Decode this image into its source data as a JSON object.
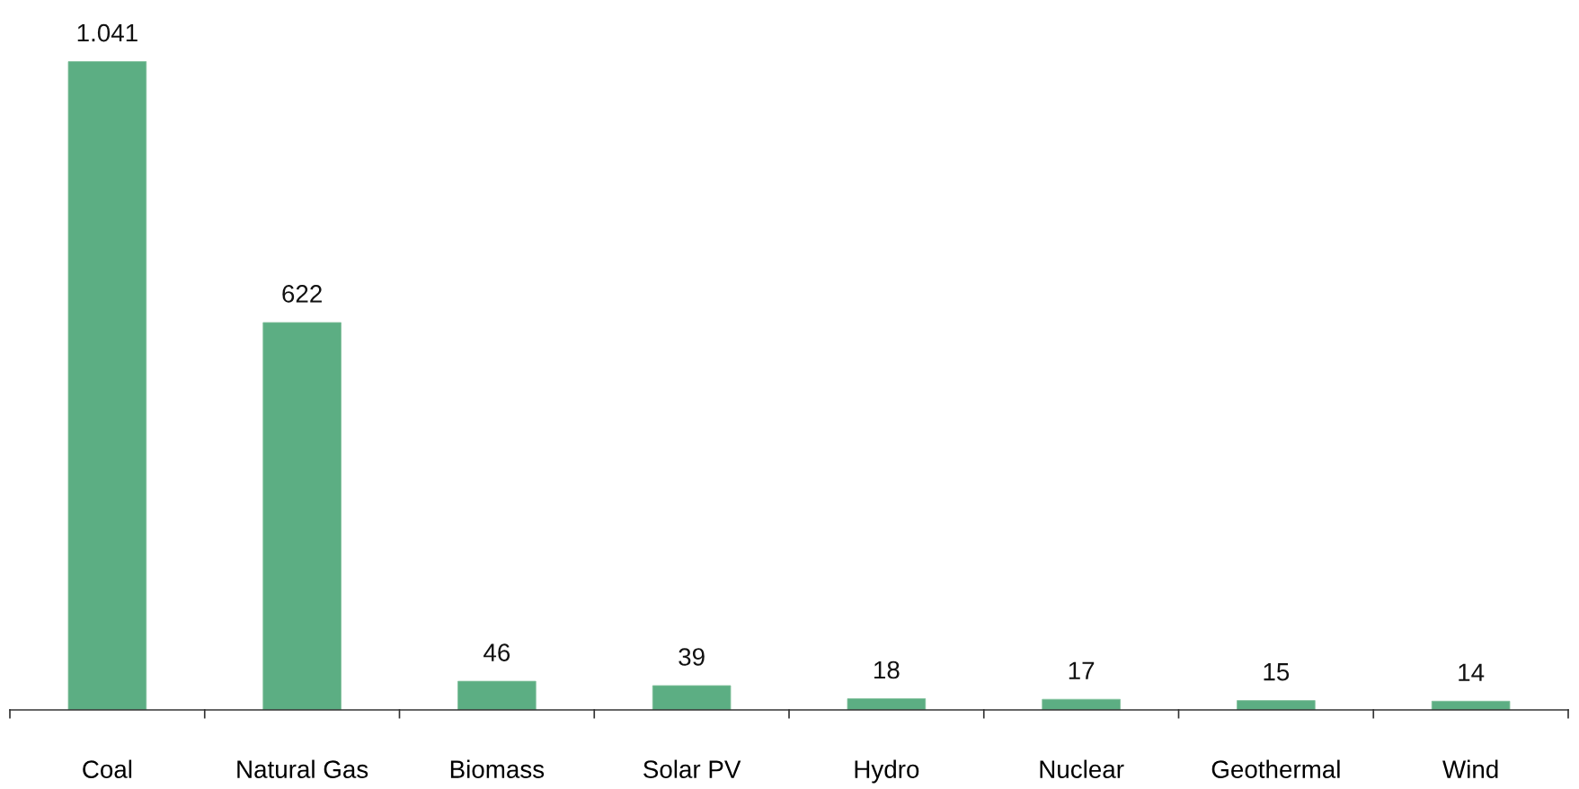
{
  "chart_data": {
    "type": "bar",
    "categories": [
      "Coal",
      "Natural Gas",
      "Biomass",
      "Solar PV",
      "Hydro",
      "Nuclear",
      "Geothermal",
      "Wind"
    ],
    "values": [
      1041,
      622,
      46,
      39,
      18,
      17,
      15,
      14
    ],
    "value_labels": [
      "1.041",
      "622",
      "46",
      "39",
      "18",
      "17",
      "15",
      "14"
    ],
    "color": "#5cae83",
    "grid": false,
    "legend": false
  }
}
